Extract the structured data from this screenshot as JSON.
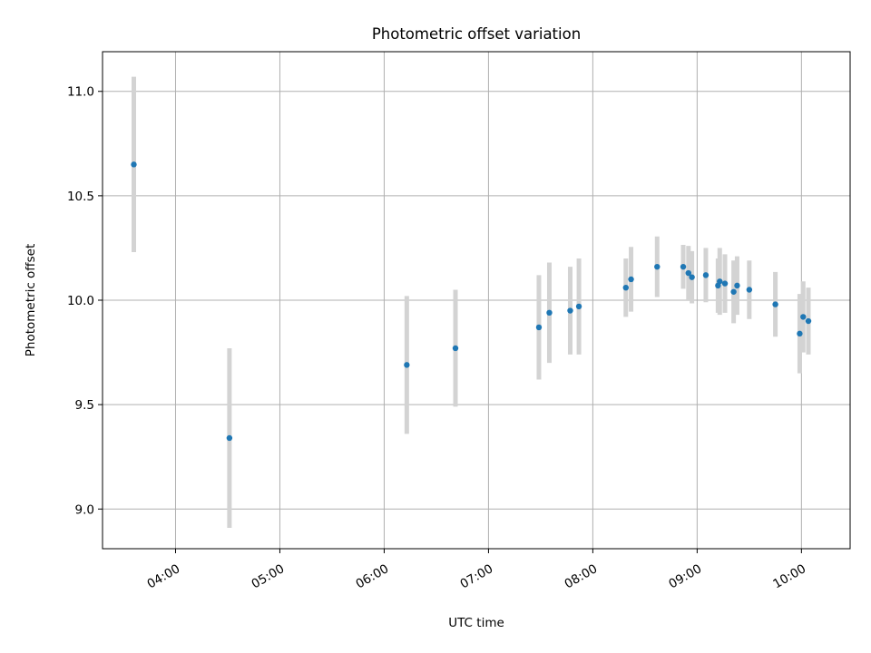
{
  "chart_data": {
    "type": "scatter",
    "title": "Photometric offset variation",
    "xlabel": "UTC time",
    "ylabel": "Photometric offset",
    "x_axis_type": "time",
    "xlim": [
      "03:18",
      "10:28"
    ],
    "ylim": [
      8.81,
      11.19
    ],
    "x_ticks": [
      "04:00",
      "05:00",
      "06:00",
      "07:00",
      "08:00",
      "09:00",
      "10:00"
    ],
    "y_ticks": [
      9.0,
      9.5,
      10.0,
      10.5,
      11.0
    ],
    "y_tick_labels": [
      "9.0",
      "9.5",
      "10.0",
      "10.5",
      "11.0"
    ],
    "grid": true,
    "colors": {
      "points": "#1f77b4",
      "error_bars": "#d3d3d3",
      "grid": "#b0b0b0"
    },
    "points": [
      {
        "x": "03:36",
        "y": 10.65,
        "err": 0.42
      },
      {
        "x": "04:31",
        "y": 9.34,
        "err": 0.43
      },
      {
        "x": "06:13",
        "y": 9.69,
        "err": 0.33
      },
      {
        "x": "06:41",
        "y": 9.77,
        "err": 0.28
      },
      {
        "x": "07:29",
        "y": 9.87,
        "err": 0.25
      },
      {
        "x": "07:35",
        "y": 9.94,
        "err": 0.24
      },
      {
        "x": "07:47",
        "y": 9.95,
        "err": 0.21
      },
      {
        "x": "07:52",
        "y": 9.97,
        "err": 0.23
      },
      {
        "x": "08:19",
        "y": 10.06,
        "err": 0.14
      },
      {
        "x": "08:22",
        "y": 10.1,
        "err": 0.155
      },
      {
        "x": "08:37",
        "y": 10.16,
        "err": 0.145
      },
      {
        "x": "08:52",
        "y": 10.16,
        "err": 0.105
      },
      {
        "x": "08:55",
        "y": 10.13,
        "err": 0.13
      },
      {
        "x": "08:57",
        "y": 10.11,
        "err": 0.125
      },
      {
        "x": "09:05",
        "y": 10.12,
        "err": 0.13
      },
      {
        "x": "09:12",
        "y": 10.07,
        "err": 0.13
      },
      {
        "x": "09:13",
        "y": 10.09,
        "err": 0.16
      },
      {
        "x": "09:16",
        "y": 10.08,
        "err": 0.14
      },
      {
        "x": "09:21",
        "y": 10.04,
        "err": 0.15
      },
      {
        "x": "09:23",
        "y": 10.07,
        "err": 0.14
      },
      {
        "x": "09:30",
        "y": 10.05,
        "err": 0.14
      },
      {
        "x": "09:45",
        "y": 9.98,
        "err": 0.155
      },
      {
        "x": "09:59",
        "y": 9.84,
        "err": 0.19
      },
      {
        "x": "10:01",
        "y": 9.92,
        "err": 0.17
      },
      {
        "x": "10:04",
        "y": 9.9,
        "err": 0.16
      }
    ]
  }
}
